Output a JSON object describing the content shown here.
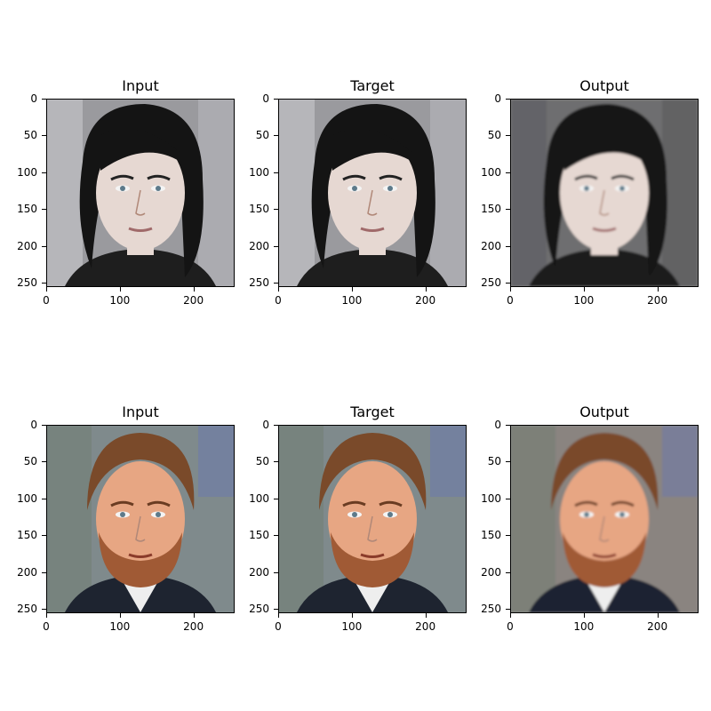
{
  "figure": {
    "rows": [
      {
        "panels": [
          {
            "title": "Input",
            "image": "man-dark-hair-photo-input",
            "tone": "cool-dark"
          },
          {
            "title": "Target",
            "image": "man-dark-hair-photo-target",
            "tone": "cool-dark"
          },
          {
            "title": "Output",
            "image": "man-dark-hair-photo-output",
            "tone": "cool-dark-soft"
          }
        ]
      },
      {
        "panels": [
          {
            "title": "Input",
            "image": "bearded-man-photo-input",
            "tone": "warm"
          },
          {
            "title": "Target",
            "image": "bearded-man-photo-target",
            "tone": "warm"
          },
          {
            "title": "Output",
            "image": "bearded-man-photo-output",
            "tone": "warm-soft"
          }
        ]
      }
    ],
    "y_ticks": [
      "0",
      "50",
      "100",
      "150",
      "200",
      "250"
    ],
    "x_ticks": [
      "0",
      "100",
      "200"
    ]
  }
}
